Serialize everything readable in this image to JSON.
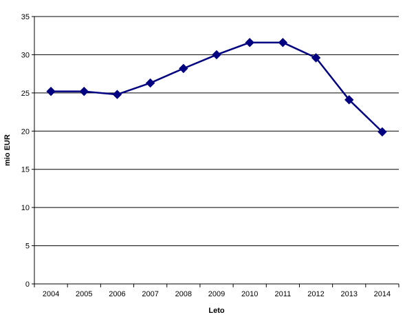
{
  "chart_data": {
    "type": "line",
    "title": "",
    "xlabel": "Leto",
    "ylabel": "mio EUR",
    "categories": [
      "2004",
      "2005",
      "2006",
      "2007",
      "2008",
      "2009",
      "2010",
      "2011",
      "2012",
      "2013",
      "2014"
    ],
    "series": [
      {
        "values": [
          25.2,
          25.2,
          24.8,
          26.3,
          28.2,
          30.0,
          31.6,
          31.6,
          29.6,
          24.1,
          19.9
        ],
        "color": "#000080",
        "marker": "diamond"
      }
    ],
    "ylim": [
      0,
      35
    ],
    "yticks": [
      0,
      5,
      10,
      15,
      20,
      25,
      30,
      35
    ],
    "grid": "horizontal",
    "legend": "none"
  }
}
